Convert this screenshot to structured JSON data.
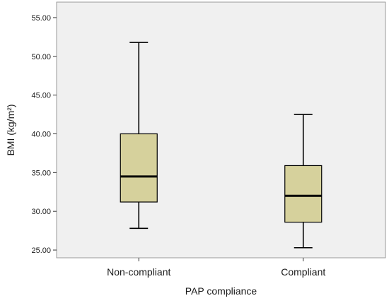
{
  "chart_data": {
    "type": "boxplot",
    "xlabel": "PAP compliance",
    "ylabel": "BMI (kg/m²)",
    "ylim": [
      24,
      57
    ],
    "yticks": [
      25.0,
      30.0,
      35.0,
      40.0,
      45.0,
      50.0,
      55.0
    ],
    "ytick_labels": [
      "25.00",
      "30.00",
      "35.00",
      "40.00",
      "45.00",
      "50.00",
      "55.00"
    ],
    "categories": [
      "Non-compliant",
      "Compliant"
    ],
    "boxes": [
      {
        "category": "Non-compliant",
        "min": 27.8,
        "q1": 31.2,
        "median": 34.5,
        "q3": 40.0,
        "max": 51.8
      },
      {
        "category": "Compliant",
        "min": 25.3,
        "q1": 28.6,
        "median": 32.0,
        "q3": 35.9,
        "max": 42.5
      }
    ],
    "grid": false,
    "legend": "none",
    "colors": {
      "box_fill": "#d6d19c",
      "plot_background": "#f0f0f0",
      "line": "#000000"
    }
  }
}
